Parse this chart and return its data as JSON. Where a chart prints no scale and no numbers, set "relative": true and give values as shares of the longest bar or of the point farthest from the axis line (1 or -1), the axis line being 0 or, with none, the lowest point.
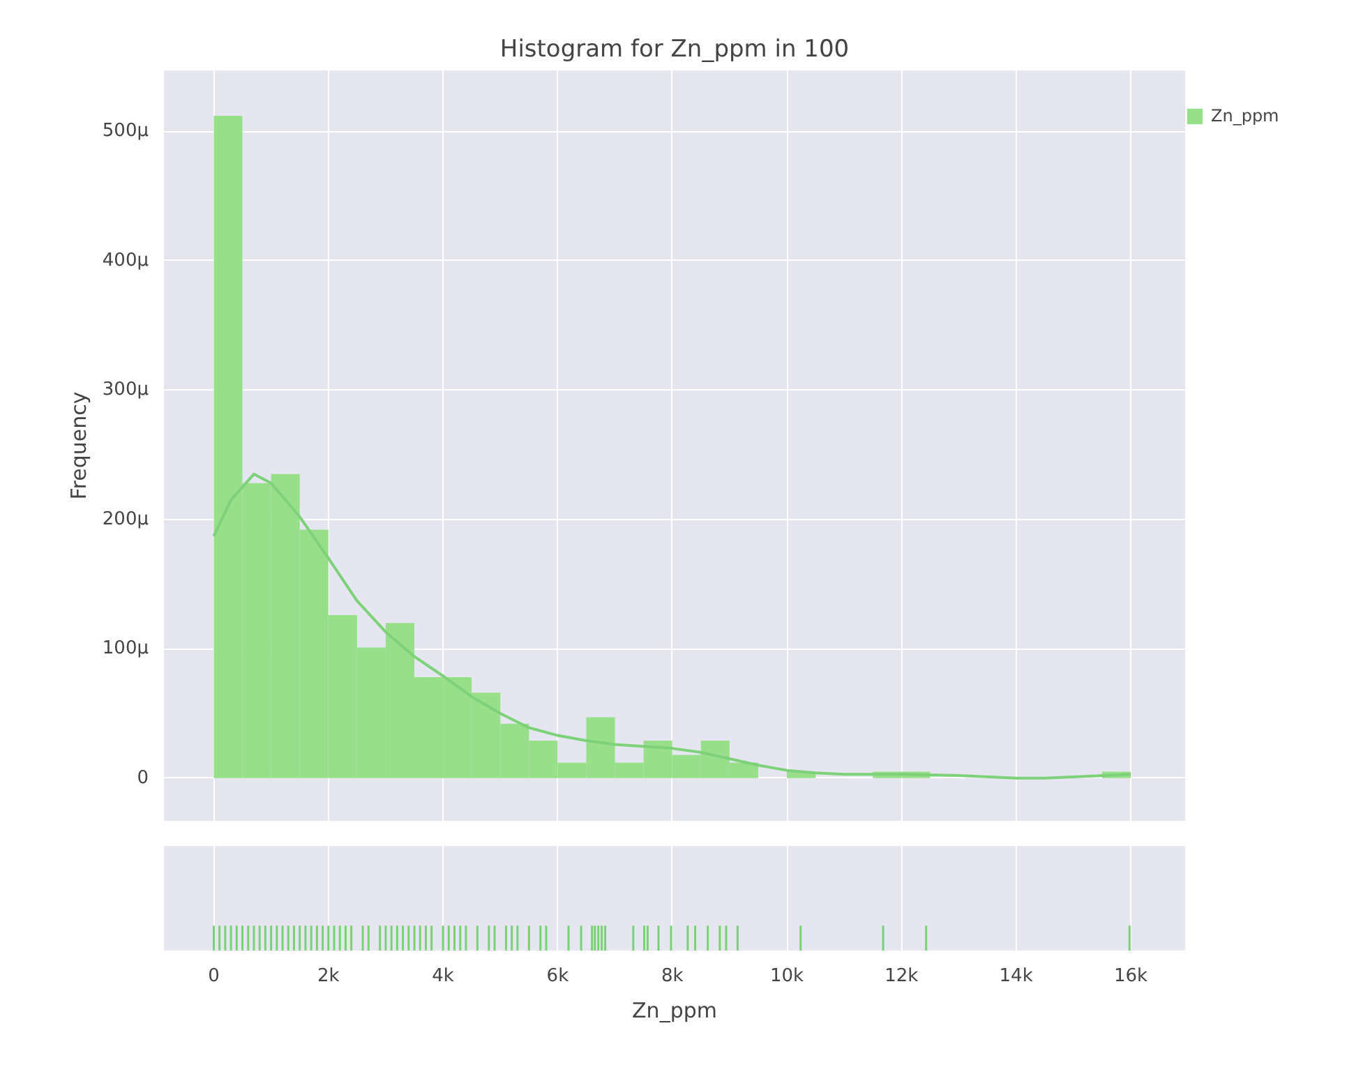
{
  "chart_data": [
    {
      "type": "histogram",
      "title": "Histogram for Zn_ppm in 100",
      "ylabel": "Frequency",
      "bins": [
        0,
        500,
        1000,
        1500,
        2000,
        2500,
        3000,
        3500,
        4000,
        4500,
        5000,
        5500,
        6000,
        6500,
        7000,
        7500,
        8000,
        8500,
        9000,
        9500,
        10000,
        10500,
        11000,
        11500,
        12000,
        12500,
        13000,
        13500,
        14000,
        14500,
        15000,
        15500,
        16000
      ],
      "series": [
        {
          "name": "Zn_ppm",
          "type": "histogram",
          "color": "#98df8a",
          "values": [
            512,
            228,
            235,
            192,
            126,
            101,
            120,
            78,
            78,
            66,
            42,
            29,
            12,
            47,
            12,
            29,
            18,
            29,
            12,
            0,
            5,
            0,
            0,
            5,
            5,
            0,
            0,
            0,
            0,
            0,
            0,
            5
          ]
        },
        {
          "type": "line",
          "color": "#7dd279",
          "x": [
            0,
            300,
            700,
            1000,
            1500,
            2000,
            2500,
            3000,
            3500,
            4000,
            4500,
            5000,
            5500,
            6000,
            6500,
            7000,
            8000,
            8500,
            9000,
            9500,
            10000,
            10500,
            11000,
            12000,
            13000,
            14000,
            14500,
            15000,
            16000
          ],
          "values": [
            187,
            215,
            235,
            228,
            202,
            170,
            137,
            113,
            94,
            79,
            63,
            50,
            39,
            33,
            29,
            26,
            23,
            20,
            15,
            10,
            6,
            4,
            3,
            3,
            2,
            0,
            0,
            1,
            3
          ]
        }
      ],
      "xlim": [
        -870,
        16950
      ],
      "xticks": [
        {
          "value": 0,
          "label": null
        },
        {
          "value": 2000,
          "label": null
        },
        {
          "value": 4000,
          "label": null
        },
        {
          "value": 6000,
          "label": null
        },
        {
          "value": 8000,
          "label": null
        },
        {
          "value": 10000,
          "label": null
        },
        {
          "value": 12000,
          "label": null
        },
        {
          "value": 14000,
          "label": null
        },
        {
          "value": 16000,
          "label": null
        }
      ],
      "ylim": [
        -33,
        547
      ],
      "yticks": [
        0,
        {
          "value": 100,
          "label": "100μ"
        },
        {
          "value": 200,
          "label": "200μ"
        },
        {
          "value": 300,
          "label": "300μ"
        },
        {
          "value": 400,
          "label": "400μ"
        },
        {
          "value": 500,
          "label": "500μ"
        }
      ],
      "grid": true,
      "legend": "top right",
      "tick_labels": "y"
    },
    {
      "type": "bar",
      "xlabel": "Zn_ppm",
      "color": "#77d36f",
      "relative": true,
      "x": [
        0,
        100,
        200,
        300,
        400,
        500,
        600,
        700,
        800,
        900,
        1000,
        1100,
        1200,
        1300,
        1400,
        1500,
        1600,
        1700,
        1800,
        1900,
        2000,
        2100,
        2200,
        2300,
        2400,
        2600,
        2700,
        2900,
        3000,
        3100,
        3200,
        3300,
        3400,
        3500,
        3600,
        3700,
        3800,
        4000,
        4100,
        4200,
        4300,
        4400,
        4600,
        4800,
        4900,
        5100,
        5200,
        5300,
        5500,
        5700,
        5800,
        6190,
        6410,
        6600,
        6650,
        6710,
        6770,
        6830,
        7320,
        7510,
        7570,
        7760,
        7980,
        8270,
        8400,
        8620,
        8830,
        8940,
        9140,
        10240,
        11680,
        12430,
        15980
      ],
      "values": [
        1,
        1,
        1,
        1,
        1,
        1,
        1,
        1,
        1,
        1,
        1,
        1,
        1,
        1,
        1,
        1,
        1,
        1,
        1,
        1,
        1,
        1,
        1,
        1,
        1,
        1,
        1,
        1,
        1,
        1,
        1,
        1,
        1,
        1,
        1,
        1,
        1,
        1,
        1,
        1,
        1,
        1,
        1,
        1,
        1,
        1,
        1,
        1,
        1,
        1,
        1,
        1,
        1,
        1,
        1,
        1,
        1,
        1,
        1,
        1,
        1,
        1,
        1,
        1,
        1,
        1,
        1,
        1,
        1,
        1,
        1,
        1,
        1
      ],
      "xlim": [
        -870,
        16950
      ],
      "xticks": [
        0,
        {
          "value": 2000,
          "label": "2k"
        },
        {
          "value": 4000,
          "label": "4k"
        },
        {
          "value": 6000,
          "label": "6k"
        },
        {
          "value": 8000,
          "label": "8k"
        },
        {
          "value": 10000,
          "label": "10k"
        },
        {
          "value": 12000,
          "label": "12k"
        },
        {
          "value": 14000,
          "label": "14k"
        },
        {
          "value": 16000,
          "label": "16k"
        }
      ],
      "grid": "x",
      "tick_labels": "x"
    }
  ]
}
